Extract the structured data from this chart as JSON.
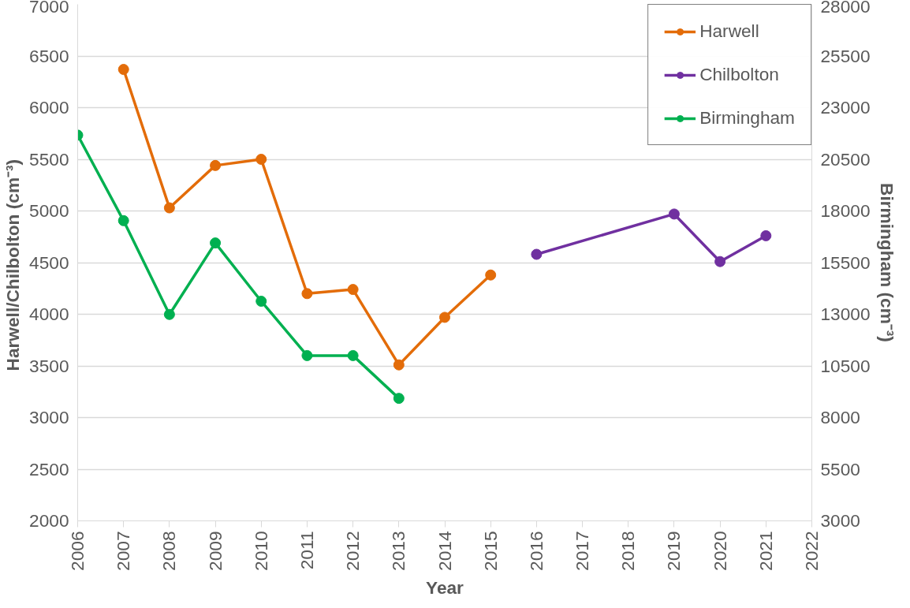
{
  "chart_data": {
    "type": "line",
    "xlabel": "Year",
    "ylabel": "Harwell/Chilbolton  (cm⁻³)",
    "y2label": "Birmingham (cm⁻³)",
    "xlim": [
      2006,
      2022
    ],
    "xticks": [
      2006,
      2007,
      2008,
      2009,
      2010,
      2011,
      2012,
      2013,
      2014,
      2015,
      2016,
      2017,
      2018,
      2019,
      2020,
      2021,
      2022
    ],
    "ylim": [
      2000,
      7000
    ],
    "yticks": [
      2000,
      2500,
      3000,
      3500,
      4000,
      4500,
      5000,
      5500,
      6000,
      6500,
      7000
    ],
    "y2lim": [
      3000,
      28000
    ],
    "y2ticks": [
      3000,
      5500,
      8000,
      10500,
      13000,
      15500,
      18000,
      20500,
      23000,
      25500,
      28000
    ],
    "grid": "y",
    "legend": "top right",
    "marker": "circle",
    "line_style": "solid",
    "series": [
      {
        "name": "Harwell",
        "color": "#e36c09",
        "x": [
          2007,
          2008,
          2009,
          2010,
          2011,
          2012,
          2013,
          2014,
          2015
        ],
        "values": [
          6370,
          5030,
          5440,
          5500,
          4200,
          4240,
          3510,
          3970,
          4380
        ]
      },
      {
        "name": "Chilbolton",
        "color": "#7030a0",
        "x": [
          2016,
          2019,
          2020,
          2021
        ],
        "values": [
          4580,
          4970,
          4510,
          4760
        ]
      },
      {
        "name": "Birmingham",
        "color": "#00b050",
        "axis": "y2",
        "x": [
          2006,
          2007,
          2008,
          2009,
          2010,
          2011,
          2012,
          2013
        ],
        "values": [
          21670,
          17530,
          12990,
          16450,
          13630,
          11000,
          11000,
          8930
        ]
      }
    ]
  }
}
